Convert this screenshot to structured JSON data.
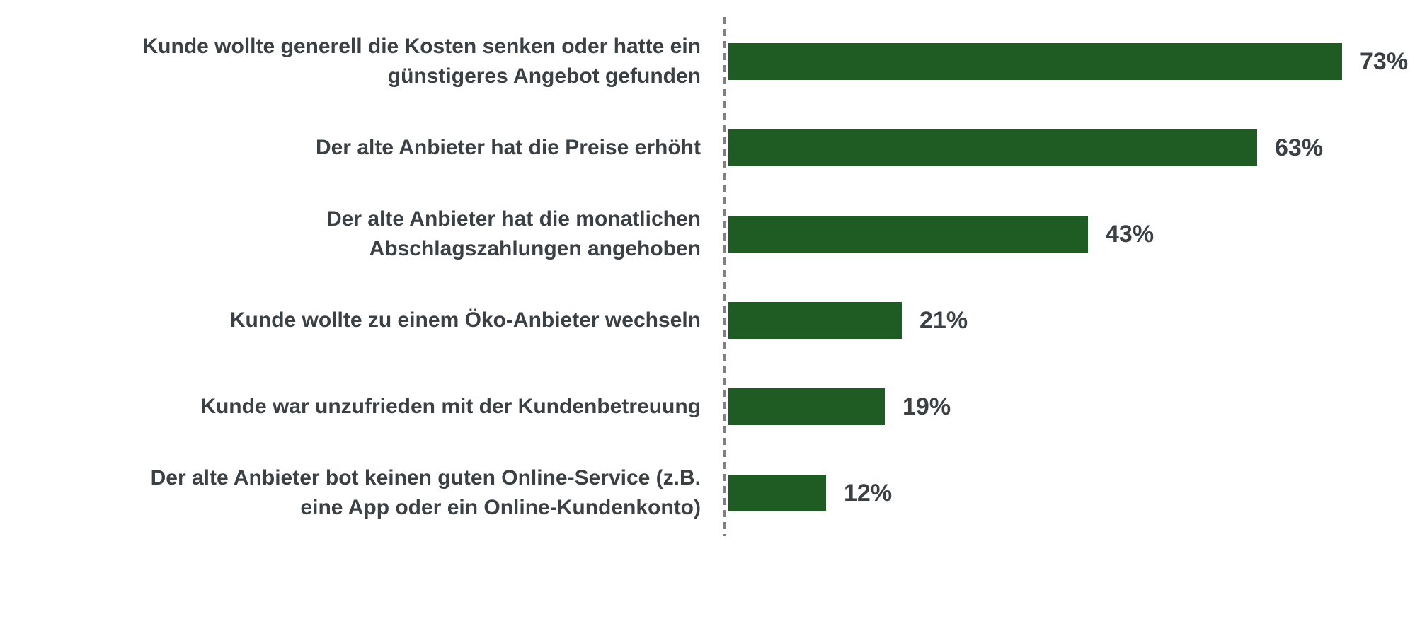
{
  "chart_data": {
    "type": "bar",
    "orientation": "horizontal",
    "title": "",
    "xlabel": "",
    "ylabel": "",
    "xlim": [
      0,
      80
    ],
    "grid": false,
    "legend": false,
    "bar_color": "#1F5C24",
    "bar_border_color": "#FFFFFF",
    "text_color": "#3B4045",
    "axis_line_color": "#808080",
    "axis_line_style": "dashed",
    "categories": [
      "Kunde wollte generell die Kosten senken oder hatte ein\ngünstigeres Angebot gefunden",
      "Der alte Anbieter hat die Preise erhöht",
      "Der alte Anbieter hat die monatlichen\nAbschlagszahlungen angehoben",
      "Kunde wollte zu einem Öko-Anbieter wechseln",
      "Kunde war unzufrieden mit der Kundenbetreuung",
      "Der alte Anbieter bot keinen guten Online-Service (z.B.\neine App oder ein Online-Kundenkonto)"
    ],
    "values": [
      73,
      63,
      43,
      21,
      19,
      12
    ],
    "value_labels": [
      "73%",
      "63%",
      "43%",
      "21%",
      "19%",
      "12%"
    ]
  }
}
